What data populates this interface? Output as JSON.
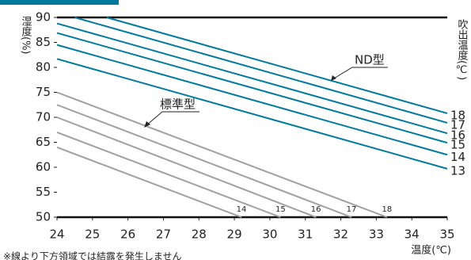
{
  "chart_data": {
    "type": "line",
    "y_label": "湿度(%)",
    "y2_label": "吹出温度(℃)",
    "x_label": "温度(℃)",
    "note": "※線より下方領域では結露を発生しません",
    "annotations": [
      "ND型",
      "標準型"
    ],
    "xlim": [
      24,
      35
    ],
    "xticks": [
      24,
      25,
      26,
      27,
      28,
      29,
      30,
      31,
      32,
      33,
      34,
      35
    ],
    "ylim": [
      50,
      90
    ],
    "yticks": [
      50,
      55,
      60,
      65,
      70,
      75,
      80,
      85,
      90
    ],
    "series": [
      {
        "name": "18",
        "color": "#00799e",
        "x": [
          25.4,
          35
        ],
        "values": [
          90,
          70.8
        ]
      },
      {
        "name": "17",
        "color": "#00799e",
        "x": [
          24.5,
          35
        ],
        "values": [
          90,
          68.9
        ]
      },
      {
        "name": "16",
        "color": "#00799e",
        "x": [
          24,
          35
        ],
        "values": [
          88.8,
          66.8
        ]
      },
      {
        "name": "15",
        "color": "#00799e",
        "x": [
          24,
          35
        ],
        "values": [
          86.9,
          64.9
        ]
      },
      {
        "name": "14",
        "color": "#00799e",
        "x": [
          24,
          35
        ],
        "values": [
          84.5,
          62.5
        ]
      },
      {
        "name": "13",
        "color": "#00799e",
        "x": [
          24,
          35
        ],
        "values": [
          81.7,
          59.7
        ]
      },
      {
        "name": "18",
        "color": "#a0a0a0",
        "x": [
          24,
          33.3
        ],
        "values": [
          75,
          50
        ]
      },
      {
        "name": "17",
        "color": "#a0a0a0",
        "x": [
          24,
          32.3
        ],
        "values": [
          72.5,
          50
        ]
      },
      {
        "name": "16",
        "color": "#a0a0a0",
        "x": [
          24,
          31.3
        ],
        "values": [
          70,
          50
        ]
      },
      {
        "name": "15",
        "color": "#a0a0a0",
        "x": [
          24,
          30.3
        ],
        "values": [
          67,
          50
        ]
      },
      {
        "name": "14",
        "color": "#a0a0a0",
        "x": [
          24,
          29.2
        ],
        "values": [
          64,
          50
        ]
      }
    ]
  }
}
